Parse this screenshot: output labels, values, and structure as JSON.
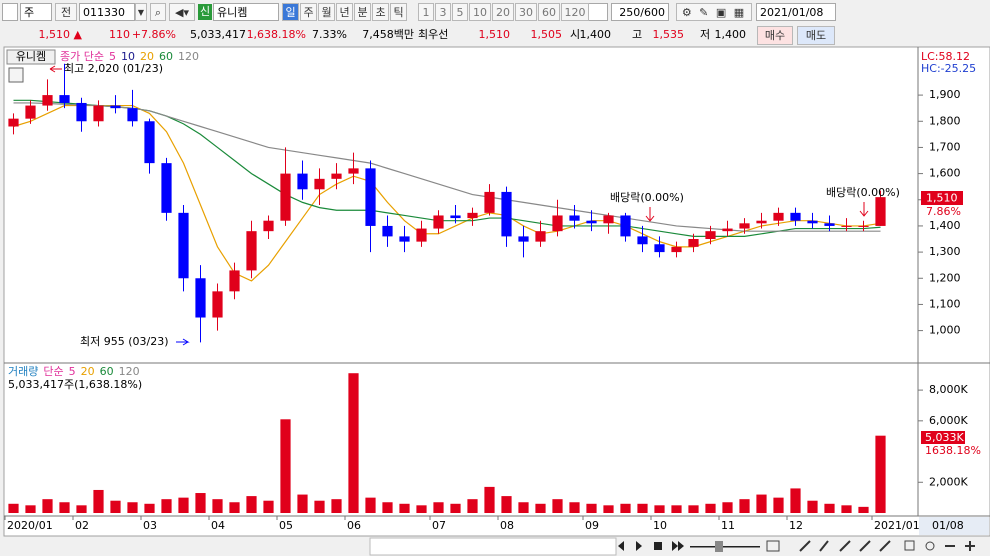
{
  "toolbar": {
    "market": "주",
    "mode": "전",
    "code": "011330",
    "badge": "신",
    "name": "유니켐",
    "periods": [
      "일",
      "주",
      "월",
      "년",
      "분",
      "초",
      "틱"
    ],
    "intervals": [
      "1",
      "3",
      "5",
      "10",
      "20",
      "30",
      "60",
      "120"
    ],
    "count": "250/600",
    "date": "2021/01/08"
  },
  "quote": {
    "price": "1,510 ▲",
    "change": "110",
    "change_pct": "+7.86%",
    "volume": "5,033,417",
    "volume_ratio": "1,638.18%",
    "turnover": "7.33%",
    "amount": "7,458백만",
    "best_label": "최우선",
    "ask": "1,510",
    "bid": "1,505",
    "open_label": "시",
    "open": "1,400",
    "high_label": "고",
    "high": "1,535",
    "low_label": "저",
    "low": "1,400",
    "buy": "매수",
    "sell": "매도"
  },
  "chart_data": [
    {
      "type": "candlestick",
      "title": "유니켐",
      "subtitle": "종가 단순",
      "up_color": "#e0001b",
      "down_color": "#0000ff",
      "open": [
        1780,
        1810,
        1860,
        1900,
        1870,
        1800,
        1860,
        1850,
        1800,
        1640,
        1450,
        1200,
        1050,
        1150,
        1230,
        1380,
        1420,
        1600,
        1540,
        1580,
        1600,
        1620,
        1400,
        1360,
        1340,
        1390,
        1440,
        1430,
        1450,
        1530,
        1360,
        1340,
        1380,
        1440,
        1420,
        1410,
        1440,
        1360,
        1330,
        1300,
        1320,
        1350,
        1380,
        1390,
        1410,
        1420,
        1450,
        1420,
        1410,
        1400,
        1400,
        1400
      ],
      "high": [
        1830,
        1880,
        1960,
        2020,
        1890,
        1880,
        1900,
        1920,
        1810,
        1660,
        1480,
        1250,
        1180,
        1260,
        1420,
        1440,
        1700,
        1650,
        1620,
        1640,
        1680,
        1650,
        1440,
        1400,
        1420,
        1460,
        1480,
        1470,
        1560,
        1550,
        1400,
        1420,
        1500,
        1480,
        1460,
        1450,
        1450,
        1400,
        1360,
        1340,
        1370,
        1400,
        1420,
        1430,
        1450,
        1470,
        1470,
        1450,
        1440,
        1430,
        1420,
        1535
      ],
      "low": [
        1750,
        1790,
        1840,
        1850,
        1760,
        1780,
        1830,
        1780,
        1600,
        1420,
        1150,
        955,
        1000,
        1120,
        1200,
        1350,
        1400,
        1500,
        1480,
        1540,
        1560,
        1300,
        1320,
        1300,
        1320,
        1370,
        1410,
        1400,
        1440,
        1320,
        1280,
        1320,
        1360,
        1390,
        1380,
        1370,
        1340,
        1300,
        1280,
        1280,
        1300,
        1330,
        1360,
        1370,
        1390,
        1400,
        1400,
        1390,
        1380,
        1380,
        1380,
        1400
      ],
      "close": [
        1810,
        1860,
        1900,
        1870,
        1800,
        1860,
        1850,
        1800,
        1640,
        1450,
        1200,
        1050,
        1150,
        1230,
        1380,
        1420,
        1600,
        1540,
        1580,
        1600,
        1620,
        1400,
        1360,
        1340,
        1390,
        1440,
        1430,
        1450,
        1530,
        1360,
        1340,
        1380,
        1440,
        1420,
        1410,
        1440,
        1360,
        1330,
        1300,
        1320,
        1350,
        1380,
        1390,
        1410,
        1420,
        1450,
        1420,
        1410,
        1400,
        1400,
        1400,
        1510
      ],
      "series": [
        {
          "name": "5",
          "color": "#e0309a"
        },
        {
          "name": "10",
          "color": "#1a1a8c"
        },
        {
          "name": "20",
          "color": "#e8a000",
          "values": [
            1780,
            1800,
            1830,
            1860,
            1860,
            1860,
            1860,
            1860,
            1830,
            1760,
            1640,
            1480,
            1320,
            1220,
            1190,
            1250,
            1340,
            1430,
            1520,
            1560,
            1590,
            1570,
            1490,
            1420,
            1370,
            1370,
            1400,
            1430,
            1450,
            1440,
            1400,
            1370,
            1380,
            1400,
            1420,
            1420,
            1400,
            1370,
            1340,
            1320,
            1320,
            1340,
            1360,
            1380,
            1400,
            1410,
            1420,
            1420,
            1410,
            1400,
            1400,
            1410
          ]
        },
        {
          "name": "60",
          "color": "#1a8a3a",
          "values": [
            1880,
            1880,
            1875,
            1870,
            1865,
            1860,
            1855,
            1850,
            1840,
            1820,
            1790,
            1750,
            1700,
            1650,
            1600,
            1560,
            1520,
            1490,
            1470,
            1460,
            1460,
            1460,
            1450,
            1440,
            1430,
            1420,
            1420,
            1420,
            1430,
            1430,
            1420,
            1410,
            1400,
            1400,
            1400,
            1400,
            1400,
            1390,
            1380,
            1370,
            1360,
            1360,
            1360,
            1360,
            1370,
            1380,
            1390,
            1390,
            1390,
            1390,
            1390,
            1395
          ]
        },
        {
          "name": "120",
          "color": "#888888",
          "values": [
            1870,
            1870,
            1868,
            1865,
            1862,
            1860,
            1855,
            1850,
            1840,
            1820,
            1800,
            1780,
            1760,
            1740,
            1720,
            1700,
            1690,
            1680,
            1670,
            1660,
            1650,
            1640,
            1620,
            1600,
            1580,
            1560,
            1540,
            1520,
            1510,
            1500,
            1490,
            1480,
            1470,
            1460,
            1450,
            1440,
            1430,
            1420,
            1410,
            1400,
            1395,
            1390,
            1385,
            1380,
            1380,
            1380,
            1380,
            1380,
            1380,
            1380,
            1380,
            1380
          ]
        }
      ],
      "ylim": [
        880,
        2080
      ],
      "yticks": [
        {
          "value": 1000,
          "label": "1,000"
        },
        {
          "value": 1100,
          "label": "1,100"
        },
        {
          "value": 1200,
          "label": "1,200"
        },
        {
          "value": 1300,
          "label": "1,300"
        },
        {
          "value": 1400,
          "label": "1,400"
        },
        {
          "value": 1500,
          "label": "1,500"
        },
        {
          "value": 1600,
          "label": "1,600"
        },
        {
          "value": 1700,
          "label": "1,700"
        },
        {
          "value": 1800,
          "label": "1,800"
        },
        {
          "value": 1900,
          "label": "1,900"
        }
      ],
      "annotations": [
        "최고 2,020 (01/23)",
        "최저 955 (03/23)",
        "배당락(0.00%)",
        "배당락(0.00%)"
      ],
      "lc": "LC:58.12",
      "hc": "HC:-25.25",
      "last_price_label": "1,510",
      "last_change_label": "7.86%"
    },
    {
      "type": "bar",
      "title": "거래량",
      "subtitle": "단순",
      "color": "#e0001b",
      "summary": "5,033,417주(1,638.18%)",
      "categories": [
        "2020/01",
        null,
        null,
        null,
        "02",
        null,
        null,
        null,
        "03",
        null,
        null,
        null,
        "04",
        null,
        null,
        null,
        "05",
        null,
        null,
        null,
        "06",
        null,
        null,
        null,
        null,
        "07",
        null,
        null,
        null,
        "08",
        null,
        null,
        null,
        null,
        "09",
        null,
        null,
        null,
        "10",
        null,
        null,
        null,
        "11",
        null,
        null,
        null,
        "12",
        null,
        null,
        null,
        null,
        "2021/01"
      ],
      "values": [
        600000,
        500000,
        900000,
        700000,
        500000,
        1500000,
        800000,
        700000,
        600000,
        900000,
        1000000,
        1300000,
        900000,
        700000,
        1100000,
        800000,
        6100000,
        1200000,
        800000,
        900000,
        9100000,
        1000000,
        700000,
        600000,
        500000,
        700000,
        600000,
        900000,
        1700000,
        1100000,
        700000,
        600000,
        900000,
        700000,
        600000,
        500000,
        600000,
        600000,
        500000,
        500000,
        500000,
        600000,
        700000,
        900000,
        1200000,
        1000000,
        1600000,
        800000,
        600000,
        500000,
        400000,
        5033417
      ],
      "series": [
        {
          "name": "5",
          "color": "#e0309a"
        },
        {
          "name": "20",
          "color": "#e8a000"
        },
        {
          "name": "60",
          "color": "#1a8a3a"
        },
        {
          "name": "120",
          "color": "#888888"
        }
      ],
      "ylim": [
        0,
        9700000
      ],
      "yticks": [
        {
          "value": 2000000,
          "label": "2,000K"
        },
        {
          "value": 6000000,
          "label": "6,000K"
        },
        {
          "value": 8000000,
          "label": "8,000K"
        }
      ],
      "last_label": "5,033K",
      "last_pct": "1638.18%",
      "last_date": "01/08"
    }
  ]
}
